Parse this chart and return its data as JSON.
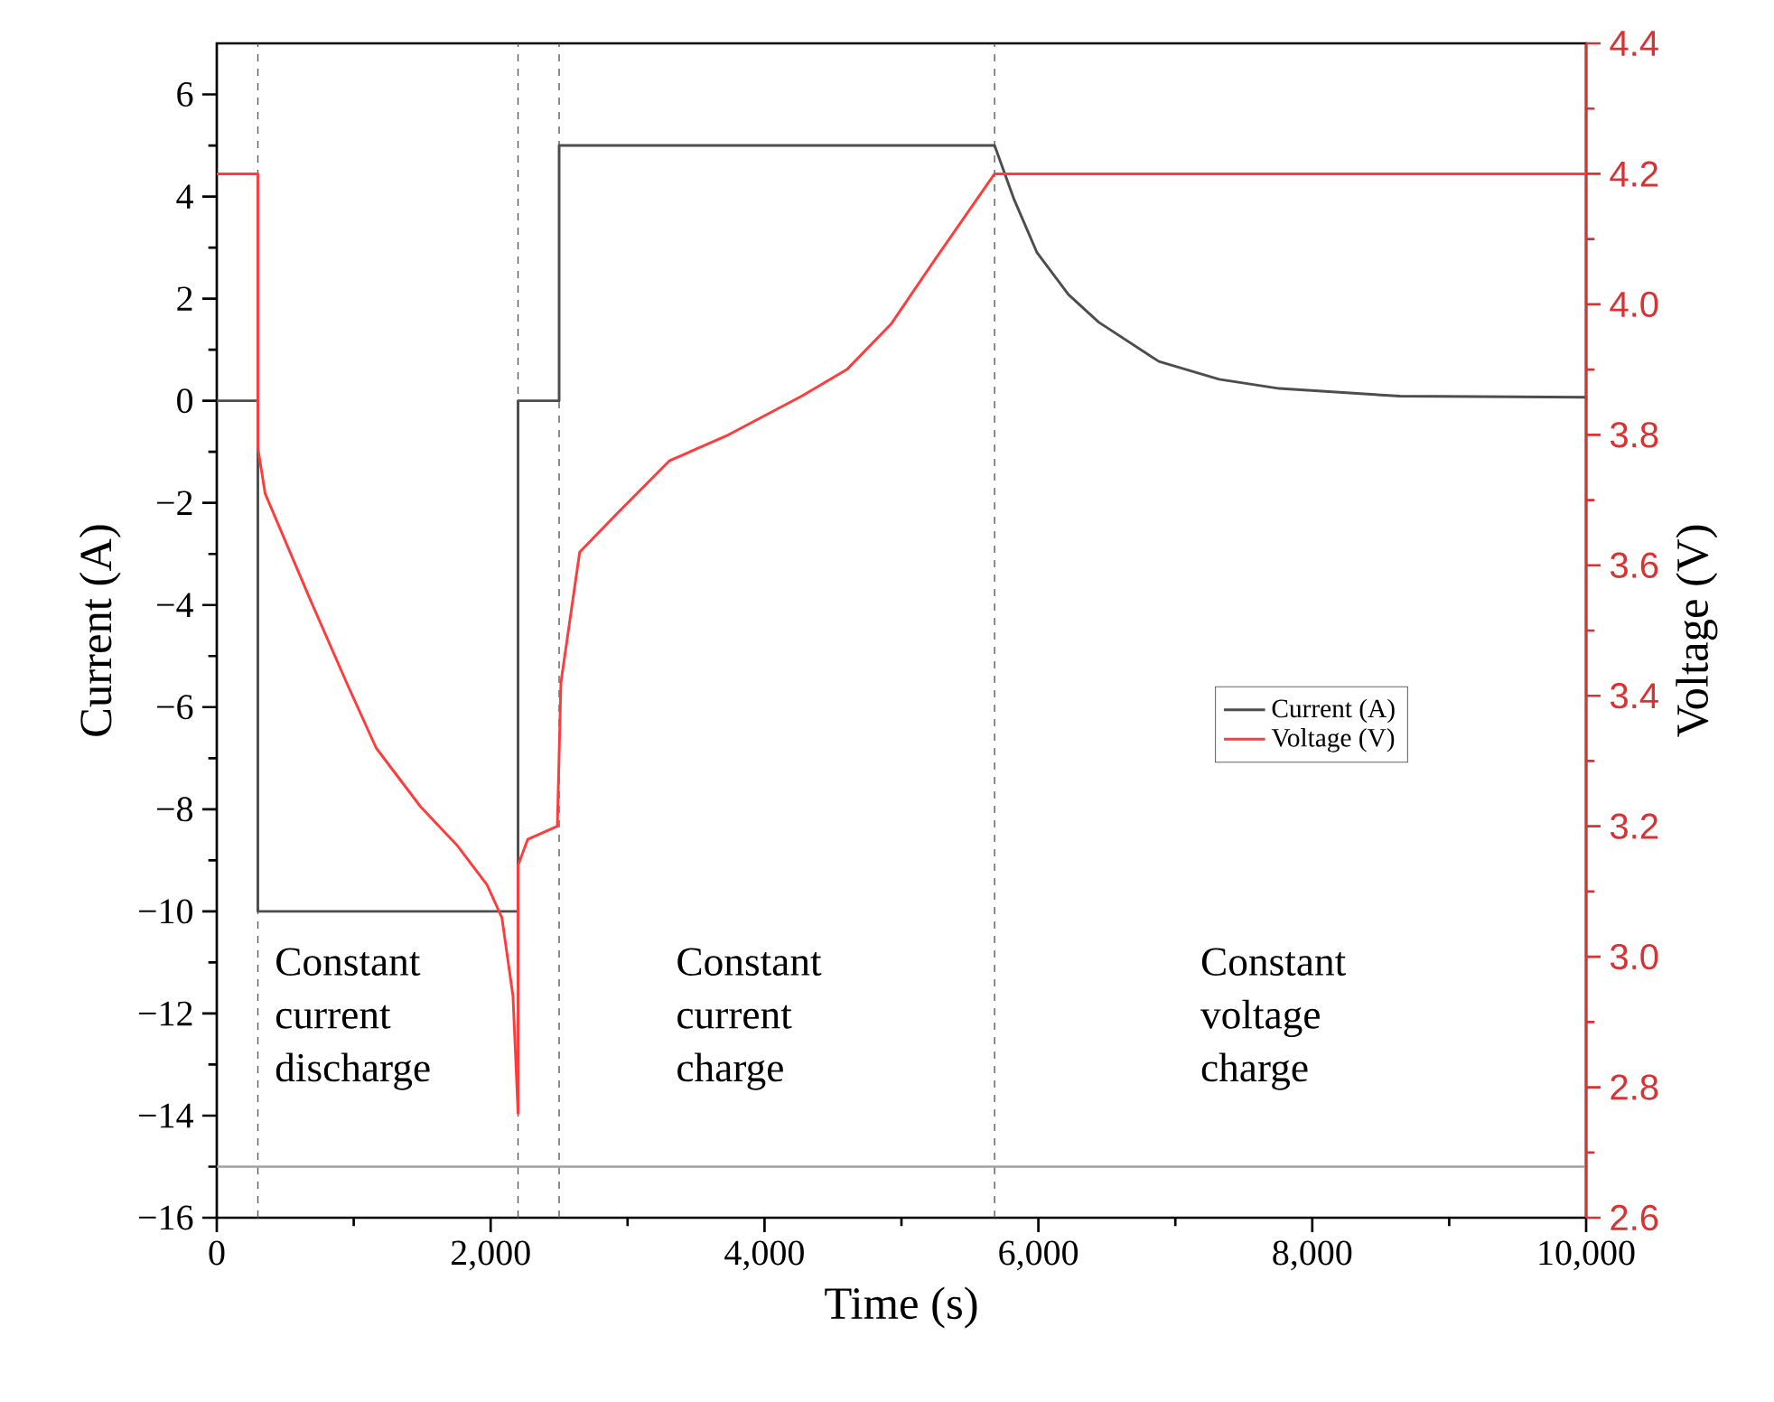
{
  "chart_data": {
    "type": "line",
    "xlabel": "Time (s)",
    "ylabel": "Current (A)",
    "y2label": "Voltage (V)",
    "xlim": [
      0,
      10000
    ],
    "xticks": [
      0,
      {
        "value": 2000,
        "label": "2,000"
      },
      {
        "value": 4000,
        "label": "4,000"
      },
      {
        "value": 6000,
        "label": "6,000"
      },
      {
        "value": 8000,
        "label": "8,000"
      },
      {
        "value": 10000,
        "label": "10,000"
      }
    ],
    "ylim": [
      -16,
      7
    ],
    "yticks": [
      {
        "value": -16,
        "label": "−16"
      },
      {
        "value": -14,
        "label": "−14"
      },
      {
        "value": -12,
        "label": "−12"
      },
      {
        "value": -10,
        "label": "−10"
      },
      {
        "value": -8,
        "label": "−8"
      },
      {
        "value": -6,
        "label": "−6"
      },
      {
        "value": -4,
        "label": "−4"
      },
      {
        "value": -2,
        "label": "−2"
      },
      0,
      2,
      4,
      6
    ],
    "y2lim": [
      2.6,
      4.4
    ],
    "y2ticks": [
      2.6,
      2.8,
      {
        "value": 3.0,
        "label": "3.0"
      },
      3.2,
      3.4,
      3.6,
      3.8,
      {
        "value": 4.0,
        "label": "4.0"
      },
      4.2,
      4.4
    ],
    "legend": "right",
    "series": [
      {
        "name": "Current (A)",
        "color": "#4d4d4d",
        "x": [
          0,
          300,
          300,
          2200,
          2200,
          2500,
          2500,
          5680,
          5820,
          5990,
          6220,
          6440,
          6880,
          7320,
          7760,
          8640,
          10000
        ],
        "values": [
          0,
          0,
          -10,
          -10,
          0,
          0,
          5,
          5,
          3.96,
          2.9,
          2.08,
          1.54,
          0.77,
          0.42,
          0.24,
          0.09,
          0.07
        ]
      },
      {
        "name": "Voltage (V)",
        "color": "#ff3b3b",
        "axis": "y2",
        "x": [
          0,
          300,
          300,
          353,
          677,
          948,
          1164,
          1488,
          1758,
          1974,
          2082,
          2163,
          2200,
          2200,
          2271,
          2487,
          2513,
          2650,
          2926,
          3304,
          3737,
          4277,
          4601,
          4925,
          5249,
          5680,
          10000
        ],
        "values": [
          4.2,
          4.2,
          3.78,
          3.71,
          3.55,
          3.42,
          3.32,
          3.23,
          3.17,
          3.11,
          3.06,
          2.94,
          2.76,
          3.14,
          3.18,
          3.2,
          3.42,
          3.62,
          3.68,
          3.76,
          3.8,
          3.86,
          3.9,
          3.97,
          4.07,
          4.2,
          4.2
        ]
      }
    ],
    "ref_lines": [
      {
        "axis": "x",
        "value": 300,
        "line_style": "dashed",
        "color": "#555555"
      },
      {
        "axis": "x",
        "value": 2200,
        "line_style": "dashed",
        "color": "#555555"
      },
      {
        "axis": "x",
        "value": 2500,
        "line_style": "dashed",
        "color": "#555555"
      },
      {
        "axis": "x",
        "value": 5680,
        "line_style": "dashed",
        "color": "#555555"
      },
      {
        "axis": "y",
        "value": -15,
        "line_style": "solid",
        "color": "#a0a0a0"
      }
    ],
    "annotations": [
      "Constant current discharge",
      "Constant current charge",
      "Constant voltage charge"
    ]
  }
}
